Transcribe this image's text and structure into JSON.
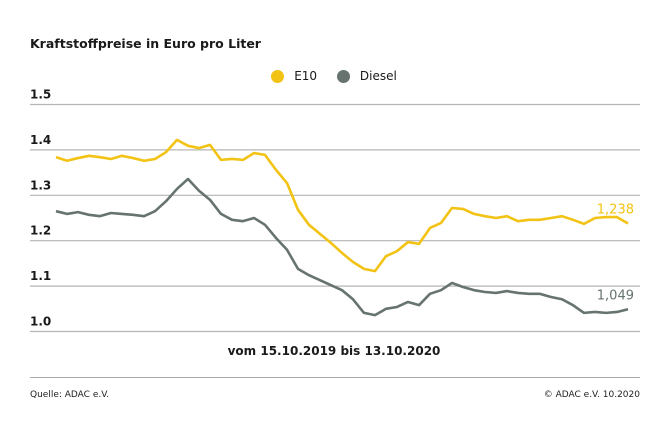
{
  "chart_data": {
    "type": "line",
    "title": "Kraftstoffpreise in Euro pro Liter",
    "xlabel": "vom 15.10.2019 bis 13.10.2020",
    "ylabel": "",
    "ylim": [
      1.0,
      1.5
    ],
    "yticks": [
      "1.0",
      "1.1",
      "1.2",
      "1.3",
      "1.4",
      "1.5"
    ],
    "grid": true,
    "legend": "top-center",
    "series": [
      {
        "name": "E10",
        "color": "#f2c314",
        "end_label": "1,238",
        "values": [
          1.384,
          1.376,
          1.382,
          1.387,
          1.384,
          1.38,
          1.387,
          1.382,
          1.376,
          1.38,
          1.395,
          1.422,
          1.409,
          1.404,
          1.411,
          1.378,
          1.38,
          1.378,
          1.393,
          1.389,
          1.356,
          1.327,
          1.268,
          1.235,
          1.215,
          1.195,
          1.173,
          1.153,
          1.138,
          1.133,
          1.166,
          1.177,
          1.197,
          1.193,
          1.228,
          1.239,
          1.272,
          1.27,
          1.259,
          1.254,
          1.25,
          1.254,
          1.243,
          1.246,
          1.246,
          1.25,
          1.254,
          1.246,
          1.237,
          1.25,
          1.252,
          1.252,
          1.238
        ]
      },
      {
        "name": "Diesel",
        "color": "#66736f",
        "end_label": "1,049",
        "values": [
          1.265,
          1.259,
          1.263,
          1.257,
          1.254,
          1.261,
          1.259,
          1.257,
          1.254,
          1.265,
          1.287,
          1.314,
          1.336,
          1.31,
          1.29,
          1.259,
          1.246,
          1.243,
          1.25,
          1.235,
          1.206,
          1.18,
          1.138,
          1.124,
          1.113,
          1.102,
          1.091,
          1.071,
          1.041,
          1.036,
          1.05,
          1.054,
          1.065,
          1.058,
          1.083,
          1.091,
          1.107,
          1.098,
          1.091,
          1.087,
          1.085,
          1.089,
          1.085,
          1.083,
          1.083,
          1.076,
          1.071,
          1.058,
          1.041,
          1.043,
          1.041,
          1.043,
          1.049
        ]
      }
    ]
  },
  "footer": {
    "source": "Quelle: ADAC e.V.",
    "copyright": "© ADAC e.V. 10.2020"
  }
}
